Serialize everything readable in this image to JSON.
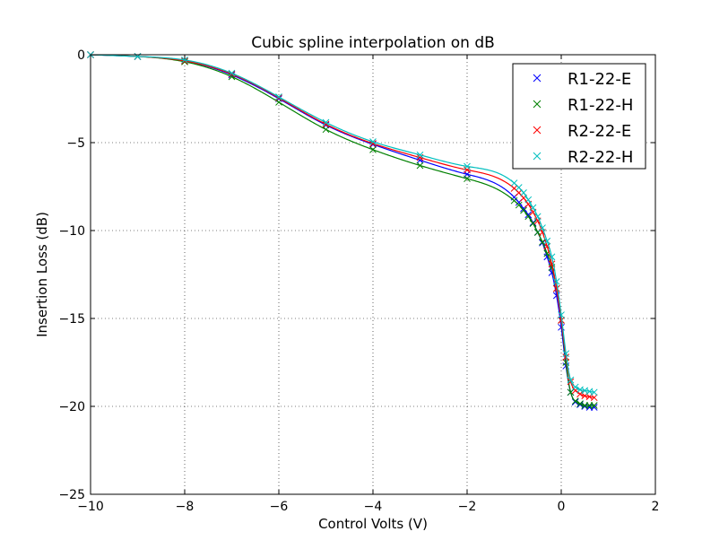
{
  "chart_data": {
    "type": "line",
    "title": "Cubic spline interpolation on dB",
    "xlabel": "Control Volts (V)",
    "ylabel": "Insertion Loss (dB)",
    "xlim": [
      -10,
      2
    ],
    "ylim": [
      -25,
      0
    ],
    "xticks": [
      -10,
      -8,
      -6,
      -4,
      -2,
      0,
      2
    ],
    "xtick_labels": [
      "−10",
      "−8",
      "−6",
      "−4",
      "−2",
      "0",
      "2"
    ],
    "yticks": [
      0,
      -5,
      -10,
      -15,
      -20,
      -25
    ],
    "ytick_labels": [
      "0",
      "−5",
      "−10",
      "−15",
      "−20",
      "−25"
    ],
    "grid": true,
    "legend_position": "top-right",
    "marker": "x",
    "series": [
      {
        "name": "R1-22-E",
        "color": "#0000ff",
        "x": [
          -10,
          -9,
          -8,
          -7,
          -6,
          -5,
          -4,
          -3,
          -2,
          -1,
          -0.9,
          -0.8,
          -0.7,
          -0.6,
          -0.5,
          -0.4,
          -0.3,
          -0.2,
          -0.1,
          0,
          0.1,
          0.2,
          0.3,
          0.4,
          0.5,
          0.6,
          0.7
        ],
        "y": [
          0,
          -0.1,
          -0.35,
          -1.15,
          -2.5,
          -4.0,
          -5.1,
          -6.0,
          -6.8,
          -8.1,
          -8.4,
          -8.75,
          -9.1,
          -9.55,
          -10.1,
          -10.7,
          -11.5,
          -12.4,
          -13.7,
          -15.5,
          -17.7,
          -19.2,
          -19.75,
          -19.9,
          -20.0,
          -20.05,
          -20.05
        ]
      },
      {
        "name": "R1-22-H",
        "color": "#008000",
        "x": [
          -10,
          -9,
          -8,
          -7,
          -6,
          -5,
          -4,
          -3,
          -2,
          -1,
          -0.9,
          -0.8,
          -0.7,
          -0.6,
          -0.5,
          -0.4,
          -0.3,
          -0.2,
          -0.1,
          0,
          0.1,
          0.2,
          0.3,
          0.4,
          0.5,
          0.6,
          0.7
        ],
        "y": [
          0,
          -0.1,
          -0.4,
          -1.25,
          -2.7,
          -4.25,
          -5.4,
          -6.3,
          -7.05,
          -8.3,
          -8.55,
          -8.85,
          -9.2,
          -9.6,
          -10.1,
          -10.65,
          -11.3,
          -12.1,
          -13.3,
          -15.1,
          -17.5,
          -19.2,
          -19.7,
          -19.85,
          -19.95,
          -19.95,
          -19.95
        ]
      },
      {
        "name": "R2-22-E",
        "color": "#ff0000",
        "x": [
          -10,
          -9,
          -8,
          -7,
          -6,
          -5,
          -4,
          -3,
          -2,
          -1,
          -0.9,
          -0.8,
          -0.7,
          -0.6,
          -0.5,
          -0.4,
          -0.3,
          -0.2,
          -0.1,
          0,
          0.1,
          0.2,
          0.3,
          0.4,
          0.5,
          0.6,
          0.7
        ],
        "y": [
          0,
          -0.1,
          -0.35,
          -1.1,
          -2.45,
          -3.95,
          -5.05,
          -5.85,
          -6.55,
          -7.6,
          -7.85,
          -8.15,
          -8.5,
          -8.95,
          -9.45,
          -10.1,
          -10.9,
          -11.9,
          -13.3,
          -15.1,
          -17.2,
          -18.6,
          -19.1,
          -19.3,
          -19.4,
          -19.45,
          -19.5
        ]
      },
      {
        "name": "R2-22-H",
        "color": "#00bfbf",
        "x": [
          -10,
          -9,
          -8,
          -7,
          -6,
          -5,
          -4,
          -3,
          -2,
          -1,
          -0.9,
          -0.8,
          -0.7,
          -0.6,
          -0.5,
          -0.4,
          -0.3,
          -0.2,
          -0.1,
          0,
          0.1,
          0.2,
          0.3,
          0.4,
          0.5,
          0.6,
          0.7
        ],
        "y": [
          0,
          -0.1,
          -0.3,
          -1.05,
          -2.4,
          -3.85,
          -4.95,
          -5.7,
          -6.35,
          -7.3,
          -7.55,
          -7.85,
          -8.25,
          -8.7,
          -9.2,
          -9.85,
          -10.6,
          -11.5,
          -12.9,
          -14.8,
          -17.0,
          -18.5,
          -18.9,
          -19.05,
          -19.1,
          -19.15,
          -19.2
        ]
      }
    ]
  }
}
